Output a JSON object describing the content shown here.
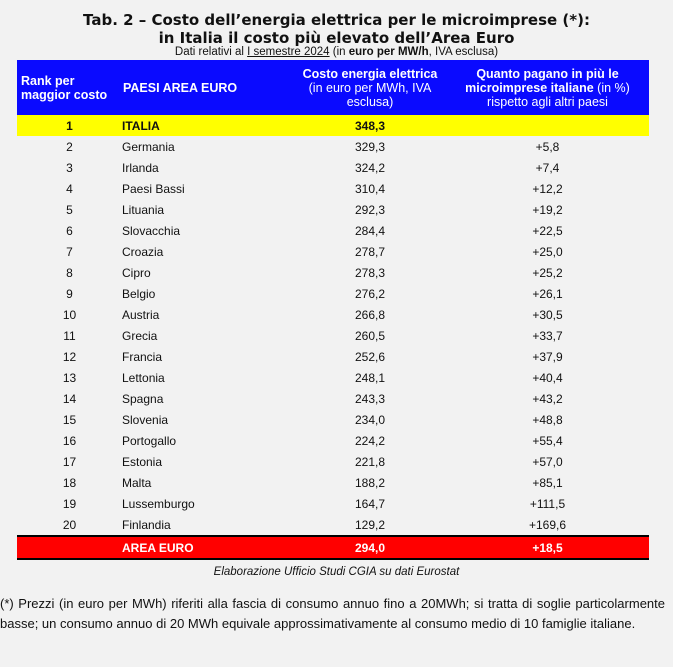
{
  "title_line1": "Tab. 2 – Costo dell’energia elettrica per le microimprese (*):",
  "title_line2": "in Italia il costo più elevato dell’Area Euro",
  "subtitle": {
    "pre": "Dati relativi al ",
    "period": "I semestre 2024",
    "mid": " (in ",
    "unit": "euro per MW/h",
    "post": ", IVA esclusa)"
  },
  "headers": {
    "rank": "Rank per maggior costo",
    "country": "PAESI AREA EURO",
    "cost": "Costo energia elettrica",
    "cost_note": "(in euro per MWh, IVA esclusa)",
    "pct": "Quanto pagano in più le microimprese italiane",
    "pct_unit": " (in %)",
    "pct_note": "rispetto agli altri paesi"
  },
  "colors": {
    "header": "#0a0aff",
    "italy": "#ffff00",
    "euro": "#ff0000"
  },
  "rows": [
    {
      "rank": "1",
      "country": "ITALIA",
      "cost": "348,3",
      "pct": ""
    },
    {
      "rank": "2",
      "country": "Germania",
      "cost": "329,3",
      "pct": "+5,8"
    },
    {
      "rank": "3",
      "country": "Irlanda",
      "cost": "324,2",
      "pct": "+7,4"
    },
    {
      "rank": "4",
      "country": "Paesi Bassi",
      "cost": "310,4",
      "pct": "+12,2"
    },
    {
      "rank": "5",
      "country": "Lituania",
      "cost": "292,3",
      "pct": "+19,2"
    },
    {
      "rank": "6",
      "country": "Slovacchia",
      "cost": "284,4",
      "pct": "+22,5"
    },
    {
      "rank": "7",
      "country": "Croazia",
      "cost": "278,7",
      "pct": "+25,0"
    },
    {
      "rank": "8",
      "country": "Cipro",
      "cost": "278,3",
      "pct": "+25,2"
    },
    {
      "rank": "9",
      "country": "Belgio",
      "cost": "276,2",
      "pct": "+26,1"
    },
    {
      "rank": "10",
      "country": "Austria",
      "cost": "266,8",
      "pct": "+30,5"
    },
    {
      "rank": "11",
      "country": "Grecia",
      "cost": "260,5",
      "pct": "+33,7"
    },
    {
      "rank": "12",
      "country": "Francia",
      "cost": "252,6",
      "pct": "+37,9"
    },
    {
      "rank": "13",
      "country": "Lettonia",
      "cost": "248,1",
      "pct": "+40,4"
    },
    {
      "rank": "14",
      "country": "Spagna",
      "cost": "243,3",
      "pct": "+43,2"
    },
    {
      "rank": "15",
      "country": "Slovenia",
      "cost": "234,0",
      "pct": "+48,8"
    },
    {
      "rank": "16",
      "country": "Portogallo",
      "cost": "224,2",
      "pct": "+55,4"
    },
    {
      "rank": "17",
      "country": "Estonia",
      "cost": "221,8",
      "pct": "+57,0"
    },
    {
      "rank": "18",
      "country": "Malta",
      "cost": "188,2",
      "pct": "+85,1"
    },
    {
      "rank": "19",
      "country": "Lussemburgo",
      "cost": "164,7",
      "pct": "+111,5"
    },
    {
      "rank": "20",
      "country": "Finlandia",
      "cost": "129,2",
      "pct": "+169,6"
    }
  ],
  "total": {
    "rank": "",
    "country": "AREA EURO",
    "cost": "294,0",
    "pct": "+18,5"
  },
  "source": "Elaborazione Ufficio Studi CGIA su dati Eurostat",
  "footnote": "(*) Prezzi (in euro per MWh) riferiti alla fascia di consumo annuo fino a 20MWh; si tratta di soglie particolarmente basse; un consumo annuo di 20 MWh equivale approssimativamente al consumo medio di 10 famiglie italiane."
}
